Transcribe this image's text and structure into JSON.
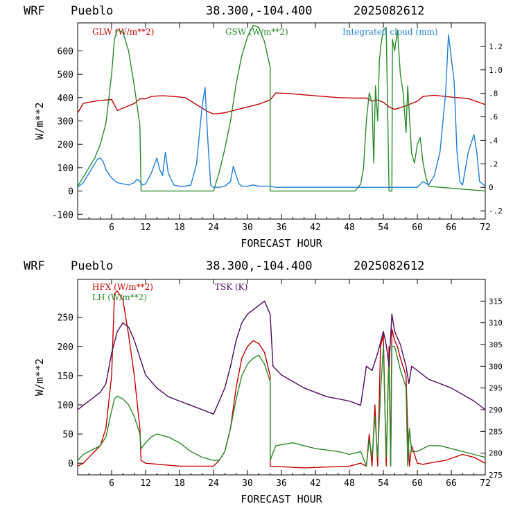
{
  "chart_data": [
    {
      "type": "line",
      "header": {
        "model": "WRF",
        "station": "Pueblo",
        "coords": "38.300,-104.400",
        "init": "2025082612"
      },
      "xlabel": "FORECAST HOUR",
      "ylabel": "W/m**2",
      "xlim": [
        0,
        72
      ],
      "ylim": [
        -120,
        720
      ],
      "xticks": [
        "6",
        "12",
        "18",
        "24",
        "30",
        "36",
        "42",
        "48",
        "54",
        "60",
        "66",
        "72"
      ],
      "yticks": [
        "-100",
        "0",
        "100",
        "200",
        "300",
        "400",
        "500",
        "600"
      ],
      "y2lim": [
        -0.27,
        1.4
      ],
      "y2ticks": [
        "-.2",
        "0",
        ".2",
        ".4",
        ".6",
        ".8",
        "1.0",
        "1.2"
      ],
      "series": [
        {
          "name": "GLW (W/m**2)",
          "axis": "left",
          "color": "#c00000",
          "x": [
            0,
            1,
            3,
            5,
            6,
            7,
            8,
            9,
            10,
            11,
            12,
            13,
            15,
            17,
            19,
            21,
            23,
            24,
            26,
            28,
            30,
            32,
            34,
            35,
            37,
            40,
            43,
            46,
            49,
            51,
            52,
            53,
            54,
            55,
            56,
            58,
            60,
            61,
            63,
            66,
            69,
            72
          ],
          "y": [
            335,
            375,
            385,
            390,
            392,
            345,
            355,
            365,
            375,
            395,
            395,
            405,
            408,
            405,
            400,
            370,
            340,
            330,
            335,
            348,
            360,
            372,
            390,
            420,
            418,
            412,
            406,
            400,
            398,
            398,
            385,
            390,
            380,
            360,
            350,
            365,
            385,
            405,
            410,
            402,
            396,
            370
          ]
        },
        {
          "name": "GSW (W/m**2)",
          "axis": "left",
          "color": "#2a8a2a",
          "x": [
            0,
            1,
            2,
            3,
            4,
            5,
            6,
            6.5,
            7,
            8,
            9,
            10,
            11,
            11.2,
            12,
            24,
            25,
            26,
            27,
            28,
            29,
            30,
            31,
            32,
            33,
            34,
            34.01,
            49,
            50,
            50.5,
            51,
            51.5,
            52,
            52.3,
            52.6,
            53,
            53.3,
            53.6,
            54,
            54.5,
            55,
            55.5,
            55.6,
            56,
            56.5,
            57,
            57.5,
            58,
            58.3,
            58.6,
            59,
            59.5,
            60,
            60.5,
            61,
            61.5,
            62,
            72
          ],
          "y": [
            20,
            60,
            100,
            140,
            200,
            290,
            500,
            650,
            690,
            680,
            600,
            450,
            280,
            0,
            0,
            0,
            80,
            180,
            300,
            460,
            580,
            660,
            710,
            700,
            640,
            530,
            0,
            0,
            30,
            100,
            300,
            420,
            380,
            120,
            450,
            300,
            560,
            630,
            690,
            700,
            0,
            0,
            650,
            600,
            690,
            500,
            420,
            250,
            450,
            320,
            160,
            120,
            200,
            230,
            120,
            60,
            20,
            0
          ]
        },
        {
          "name": "Integrated cloud (mm)",
          "axis": "right",
          "color": "#1f7fd6",
          "x": [
            0,
            1,
            2,
            3,
            3.5,
            4,
            4.5,
            5,
            6,
            7,
            8,
            9,
            10,
            10.5,
            11,
            11.5,
            12,
            13,
            14,
            14.5,
            15,
            15.5,
            16,
            17,
            18,
            19,
            20,
            21,
            22,
            22.5,
            23,
            23.5,
            24,
            25,
            26,
            27,
            27.5,
            28,
            28.5,
            29,
            30,
            31,
            32,
            34,
            35,
            40,
            50,
            60,
            61,
            62,
            63,
            64,
            65,
            65.5,
            66,
            66.5,
            67,
            67.5,
            68,
            69,
            70,
            70.5,
            71,
            72
          ],
          "y": [
            0,
            0.04,
            0.12,
            0.2,
            0.24,
            0.25,
            0.22,
            0.15,
            0.08,
            0.04,
            0.03,
            0.02,
            0.04,
            0.07,
            0.05,
            0.02,
            0.03,
            0.12,
            0.25,
            0.15,
            0.1,
            0.3,
            0.12,
            0.02,
            0.01,
            0.01,
            0.02,
            0.2,
            0.7,
            0.85,
            0.4,
            0.02,
            0,
            0,
            0.01,
            0.05,
            0.18,
            0.1,
            0.03,
            0.01,
            0.01,
            0.02,
            0.01,
            0.01,
            0,
            0,
            0,
            0,
            0.05,
            0.02,
            0.1,
            0.3,
            0.8,
            1.3,
            1.1,
            0.9,
            0.3,
            0.05,
            0.02,
            0.3,
            0.45,
            0.3,
            0.05,
            0.01
          ]
        }
      ]
    },
    {
      "type": "line",
      "header": {
        "model": "WRF",
        "station": "Pueblo",
        "coords": "38.300,-104.400",
        "init": "2025082612"
      },
      "xlabel": "FORECAST HOUR",
      "ylabel": "W/m**2",
      "xlim": [
        0,
        72
      ],
      "ylim": [
        -20,
        315
      ],
      "xticks": [
        "6",
        "12",
        "18",
        "24",
        "30",
        "36",
        "42",
        "48",
        "54",
        "60",
        "66",
        "72"
      ],
      "yticks": [
        "0",
        "50",
        "100",
        "150",
        "200",
        "250"
      ],
      "y2lim": [
        275,
        320
      ],
      "y2ticks": [
        "275",
        "280",
        "285",
        "290",
        "295",
        "300",
        "305",
        "310",
        "315"
      ],
      "series": [
        {
          "name": "HFX (W/m**2)",
          "axis": "left",
          "color": "#c00000",
          "x": [
            0,
            1,
            2,
            3,
            4,
            5,
            6,
            6.5,
            7,
            8,
            9,
            10,
            11,
            11.2,
            12,
            18,
            24,
            25,
            26,
            27,
            28,
            29,
            30,
            31,
            32,
            33,
            34,
            34.01,
            40,
            48,
            50,
            51,
            51.5,
            52,
            52.5,
            53,
            53.5,
            54,
            54.5,
            55,
            55.3,
            55.5,
            56,
            56.5,
            57,
            58,
            58.3,
            58.6,
            59,
            60,
            61,
            62,
            65,
            68,
            70,
            72
          ],
          "y": [
            -5,
            0,
            10,
            20,
            30,
            60,
            150,
            290,
            295,
            280,
            220,
            150,
            60,
            5,
            0,
            -5,
            -5,
            5,
            20,
            60,
            130,
            180,
            200,
            210,
            205,
            190,
            150,
            -5,
            -8,
            -5,
            0,
            -5,
            50,
            -5,
            100,
            -5,
            200,
            220,
            -5,
            200,
            -5,
            230,
            210,
            200,
            180,
            150,
            60,
            -5,
            30,
            0,
            -2,
            0,
            5,
            15,
            10,
            0
          ]
        },
        {
          "name": "LH (W/m**2)",
          "axis": "left",
          "color": "#2a8a2a",
          "x": [
            0,
            1,
            2,
            3,
            4,
            5,
            6,
            6.5,
            7,
            8,
            9,
            10,
            11,
            11.2,
            12,
            13,
            14,
            16,
            18,
            20,
            22,
            24,
            25,
            26,
            27,
            28,
            29,
            30,
            31,
            32,
            33,
            34,
            34.01,
            35,
            38,
            42,
            46,
            48,
            50,
            51,
            51.5,
            52,
            52.5,
            53,
            53.5,
            54,
            54.5,
            55,
            55.3,
            55.5,
            56,
            56.5,
            57,
            58,
            58.3,
            58.6,
            59,
            60,
            62,
            64,
            66,
            68,
            70,
            72
          ],
          "y": [
            5,
            15,
            20,
            25,
            30,
            45,
            90,
            110,
            115,
            110,
            100,
            80,
            50,
            25,
            35,
            45,
            50,
            45,
            35,
            20,
            10,
            5,
            5,
            20,
            60,
            110,
            150,
            170,
            180,
            185,
            170,
            140,
            5,
            30,
            35,
            25,
            20,
            15,
            20,
            -5,
            40,
            10,
            80,
            10,
            120,
            200,
            10,
            180,
            -5,
            200,
            200,
            180,
            160,
            130,
            -5,
            60,
            20,
            20,
            30,
            30,
            25,
            20,
            15,
            10
          ]
        },
        {
          "name": "TSK (K)",
          "axis": "right",
          "color": "#4b0a5a",
          "x": [
            0,
            1,
            2,
            3,
            4,
            5,
            6,
            7,
            8,
            9,
            10,
            11,
            12,
            14,
            16,
            18,
            20,
            22,
            24,
            25,
            26,
            27,
            28,
            29,
            30,
            31,
            32,
            33,
            34,
            34.5,
            36,
            40,
            44,
            48,
            50,
            51,
            52,
            53,
            54,
            54.5,
            55,
            55.5,
            56,
            57,
            58,
            58.5,
            59,
            60,
            62,
            66,
            70,
            72
          ],
          "y": [
            290,
            291,
            292,
            293,
            294,
            296,
            303,
            308,
            310,
            309,
            306,
            302,
            298,
            295,
            293,
            292,
            291,
            290,
            289,
            292,
            295,
            300,
            306,
            310,
            312,
            313,
            314,
            315,
            312,
            300,
            298,
            295,
            293,
            292,
            291,
            300,
            299,
            303,
            308,
            305,
            300,
            312,
            308,
            305,
            300,
            296,
            300,
            299,
            297,
            295,
            292,
            290
          ]
        }
      ]
    }
  ]
}
